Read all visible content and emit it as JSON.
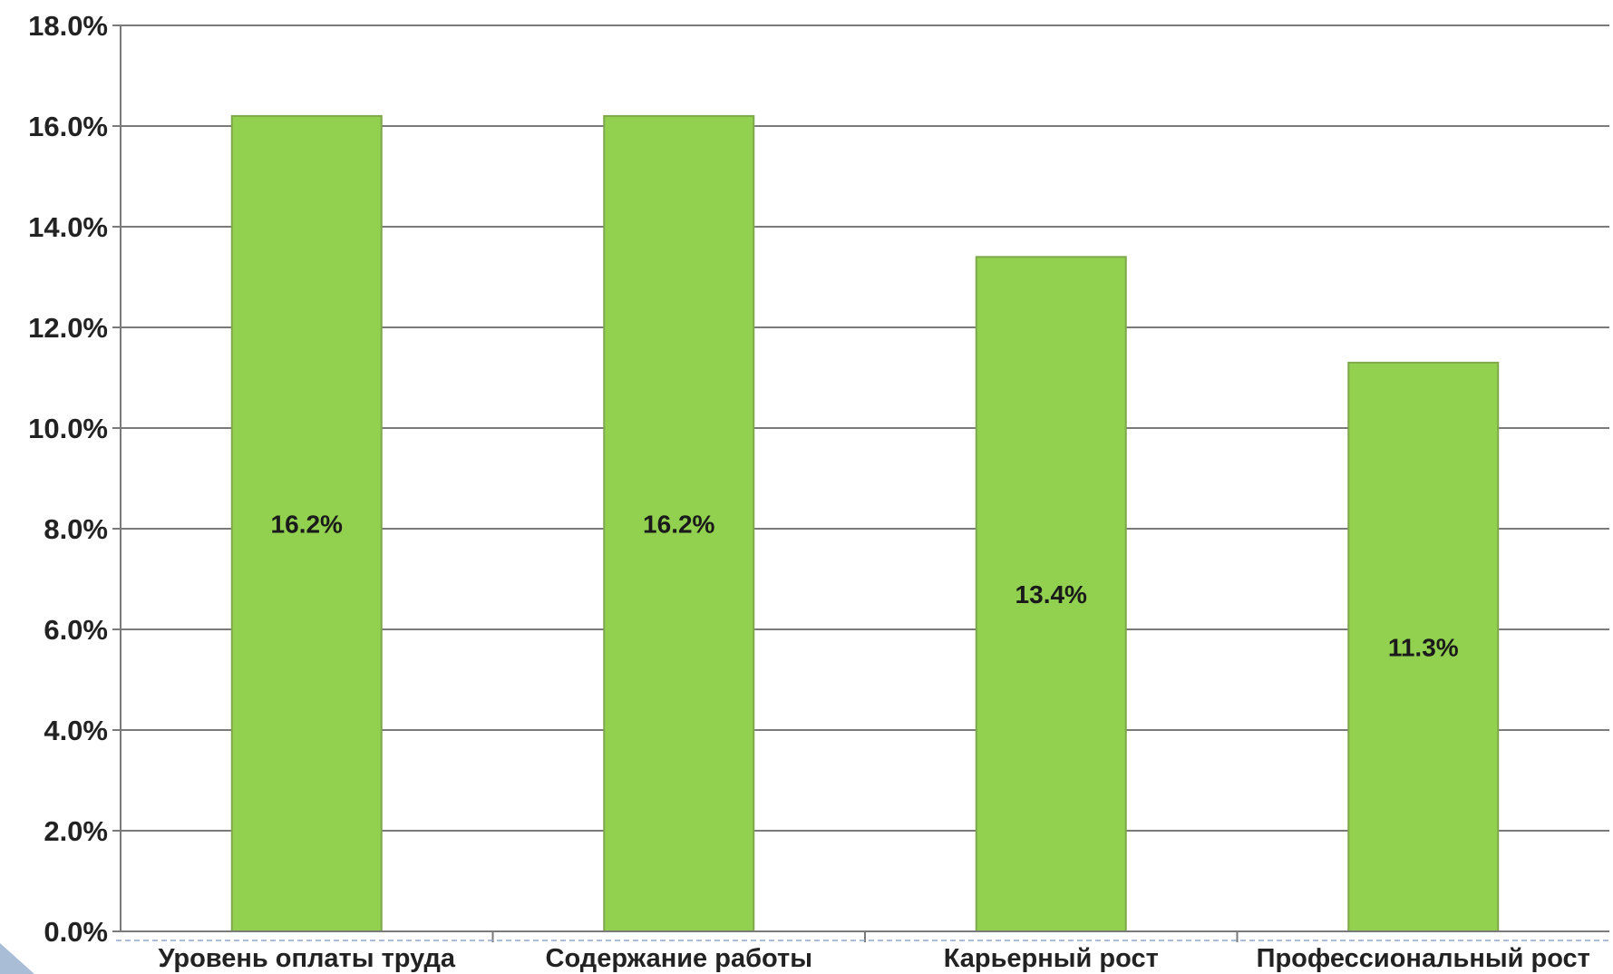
{
  "chart_data": {
    "type": "bar",
    "categories": [
      "Уровень оплаты труда",
      "Содержание работы",
      "Карьерный рост",
      "Профессиональный рост"
    ],
    "values": [
      16.2,
      16.2,
      13.4,
      11.3
    ],
    "data_labels": [
      "16.2%",
      "16.2%",
      "13.4%",
      "11.3%"
    ],
    "ylim": [
      0,
      18
    ],
    "yticks": [
      0,
      2,
      4,
      6,
      8,
      10,
      12,
      14,
      16,
      18
    ],
    "ytick_labels": [
      "0.0%",
      "2.0%",
      "4.0%",
      "6.0%",
      "8.0%",
      "10.0%",
      "12.0%",
      "14.0%",
      "16.0%",
      "18.0%"
    ],
    "grid": true,
    "legend": "none"
  },
  "colors": {
    "bar_fill": "#92d050",
    "bar_stroke": "#7fa84a",
    "gridline": "#7a7a7a",
    "axis": "#7a7a7a",
    "dashed_line": "#8fa8c8",
    "corner_triangle": "#a9bdd6"
  },
  "decorations": {
    "corner_marker_icon": "triangle-right-icon"
  }
}
